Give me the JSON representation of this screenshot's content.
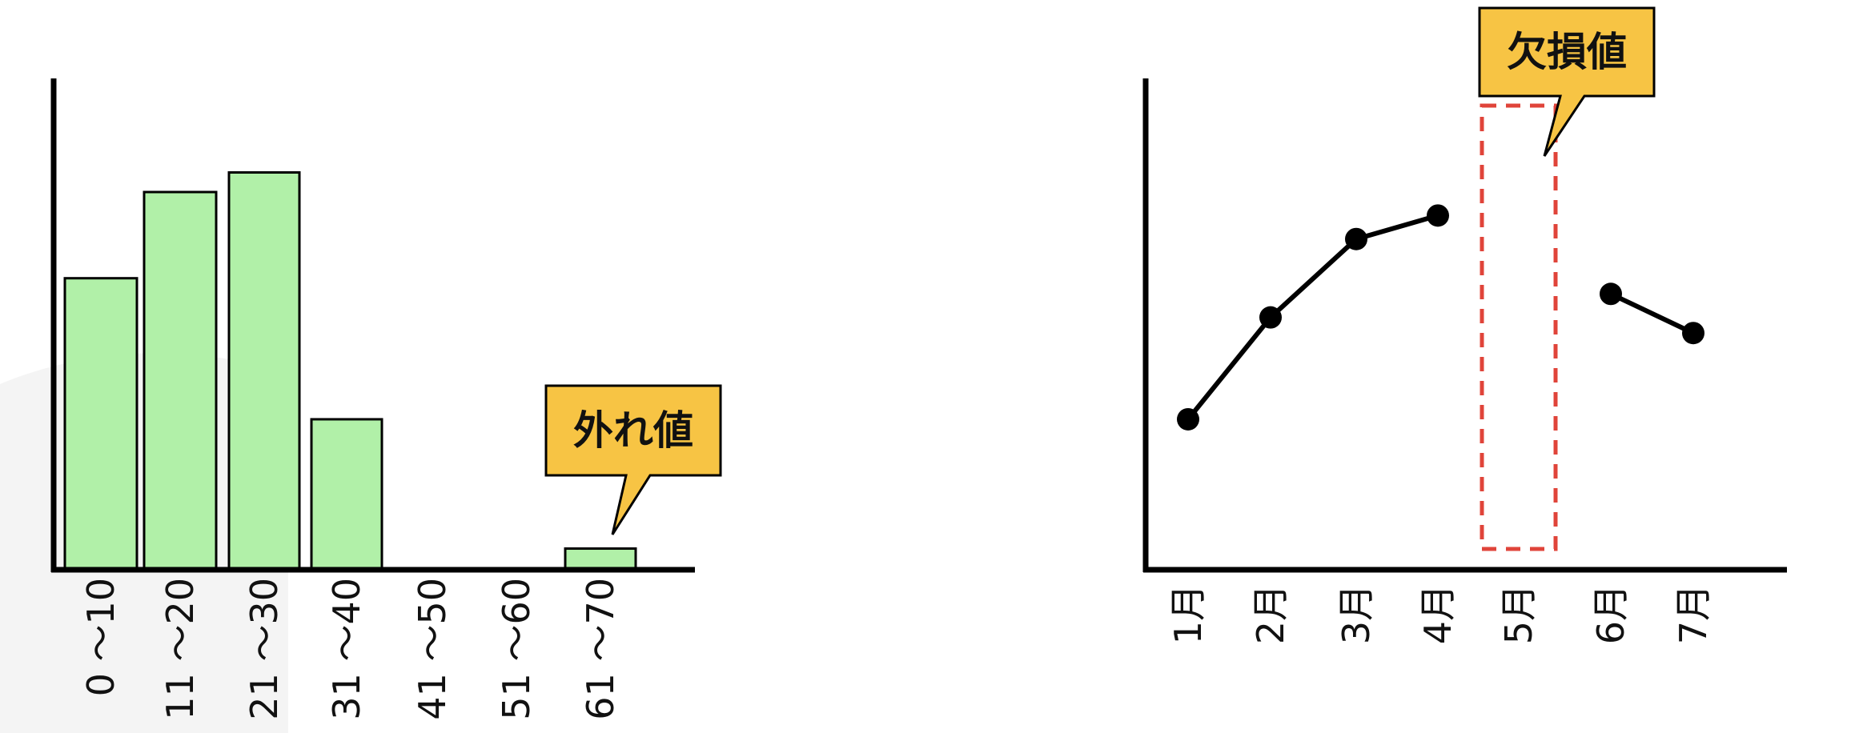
{
  "colors": {
    "bar_fill": "#b1f0a8",
    "axis": "#000000",
    "callout_fill": "#f7c444",
    "missing_box": "#e0443a",
    "line": "#000000"
  },
  "chart_data": [
    {
      "type": "bar",
      "categories": [
        "0 〜10",
        "11 〜20",
        "21 〜30",
        "31 〜40",
        "41 〜50",
        "51 〜60",
        "61 〜70"
      ],
      "values": [
        74,
        96,
        101,
        38,
        0,
        0,
        5
      ],
      "ylim": [
        0,
        125
      ],
      "annotation": {
        "text": "外れ値",
        "target_category": "61 〜70"
      },
      "grid": false
    },
    {
      "type": "line",
      "categories": [
        "1月",
        "2月",
        "3月",
        "4月",
        "5月",
        "6月",
        "7月"
      ],
      "values": [
        38,
        64,
        84,
        90,
        null,
        70,
        60
      ],
      "ylim": [
        0,
        125
      ],
      "annotation": {
        "text": "欠損値",
        "target_category": "5月"
      },
      "grid": false
    }
  ]
}
